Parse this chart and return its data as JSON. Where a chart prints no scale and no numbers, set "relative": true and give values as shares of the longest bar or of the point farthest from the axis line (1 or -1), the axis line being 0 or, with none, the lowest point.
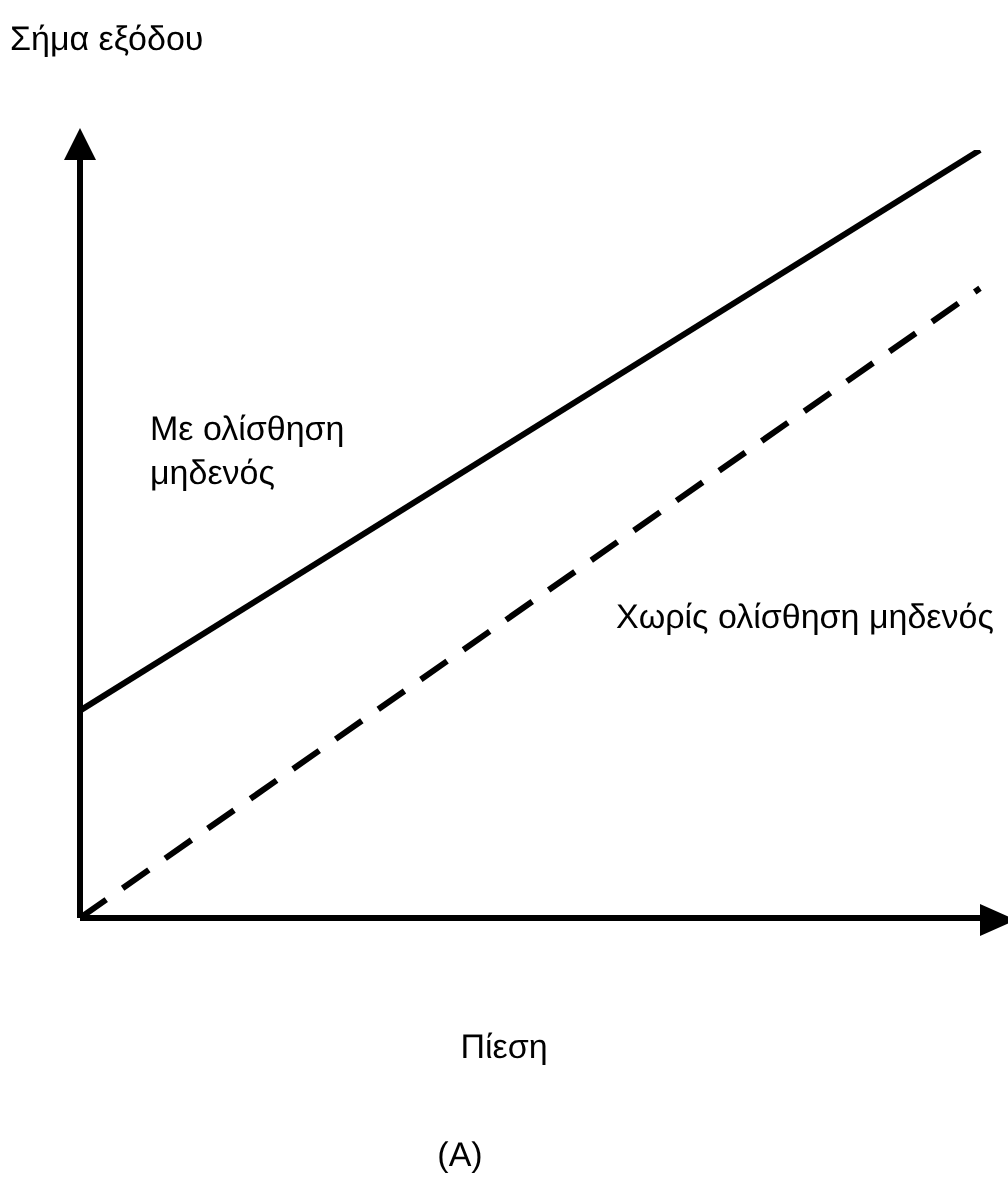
{
  "chart_data": {
    "type": "line",
    "relative": true,
    "ylabel": "Σήμα εξόδου",
    "xlabel": "Πίεση",
    "categories": [
      null,
      null
    ],
    "series": [
      {
        "name": "Με ολίσθηση μηδενός",
        "color": "#000000",
        "values": [
          0.27,
          1
        ],
        "line_style": "solid"
      },
      {
        "name": "Χωρίς ολίσθηση μηδενός",
        "color": "#000000",
        "values": [
          0,
          0.82
        ],
        "line_style": "dashed"
      }
    ],
    "annotations": [
      "(A)"
    ],
    "legend": false,
    "grid": false,
    "marker": "none"
  }
}
